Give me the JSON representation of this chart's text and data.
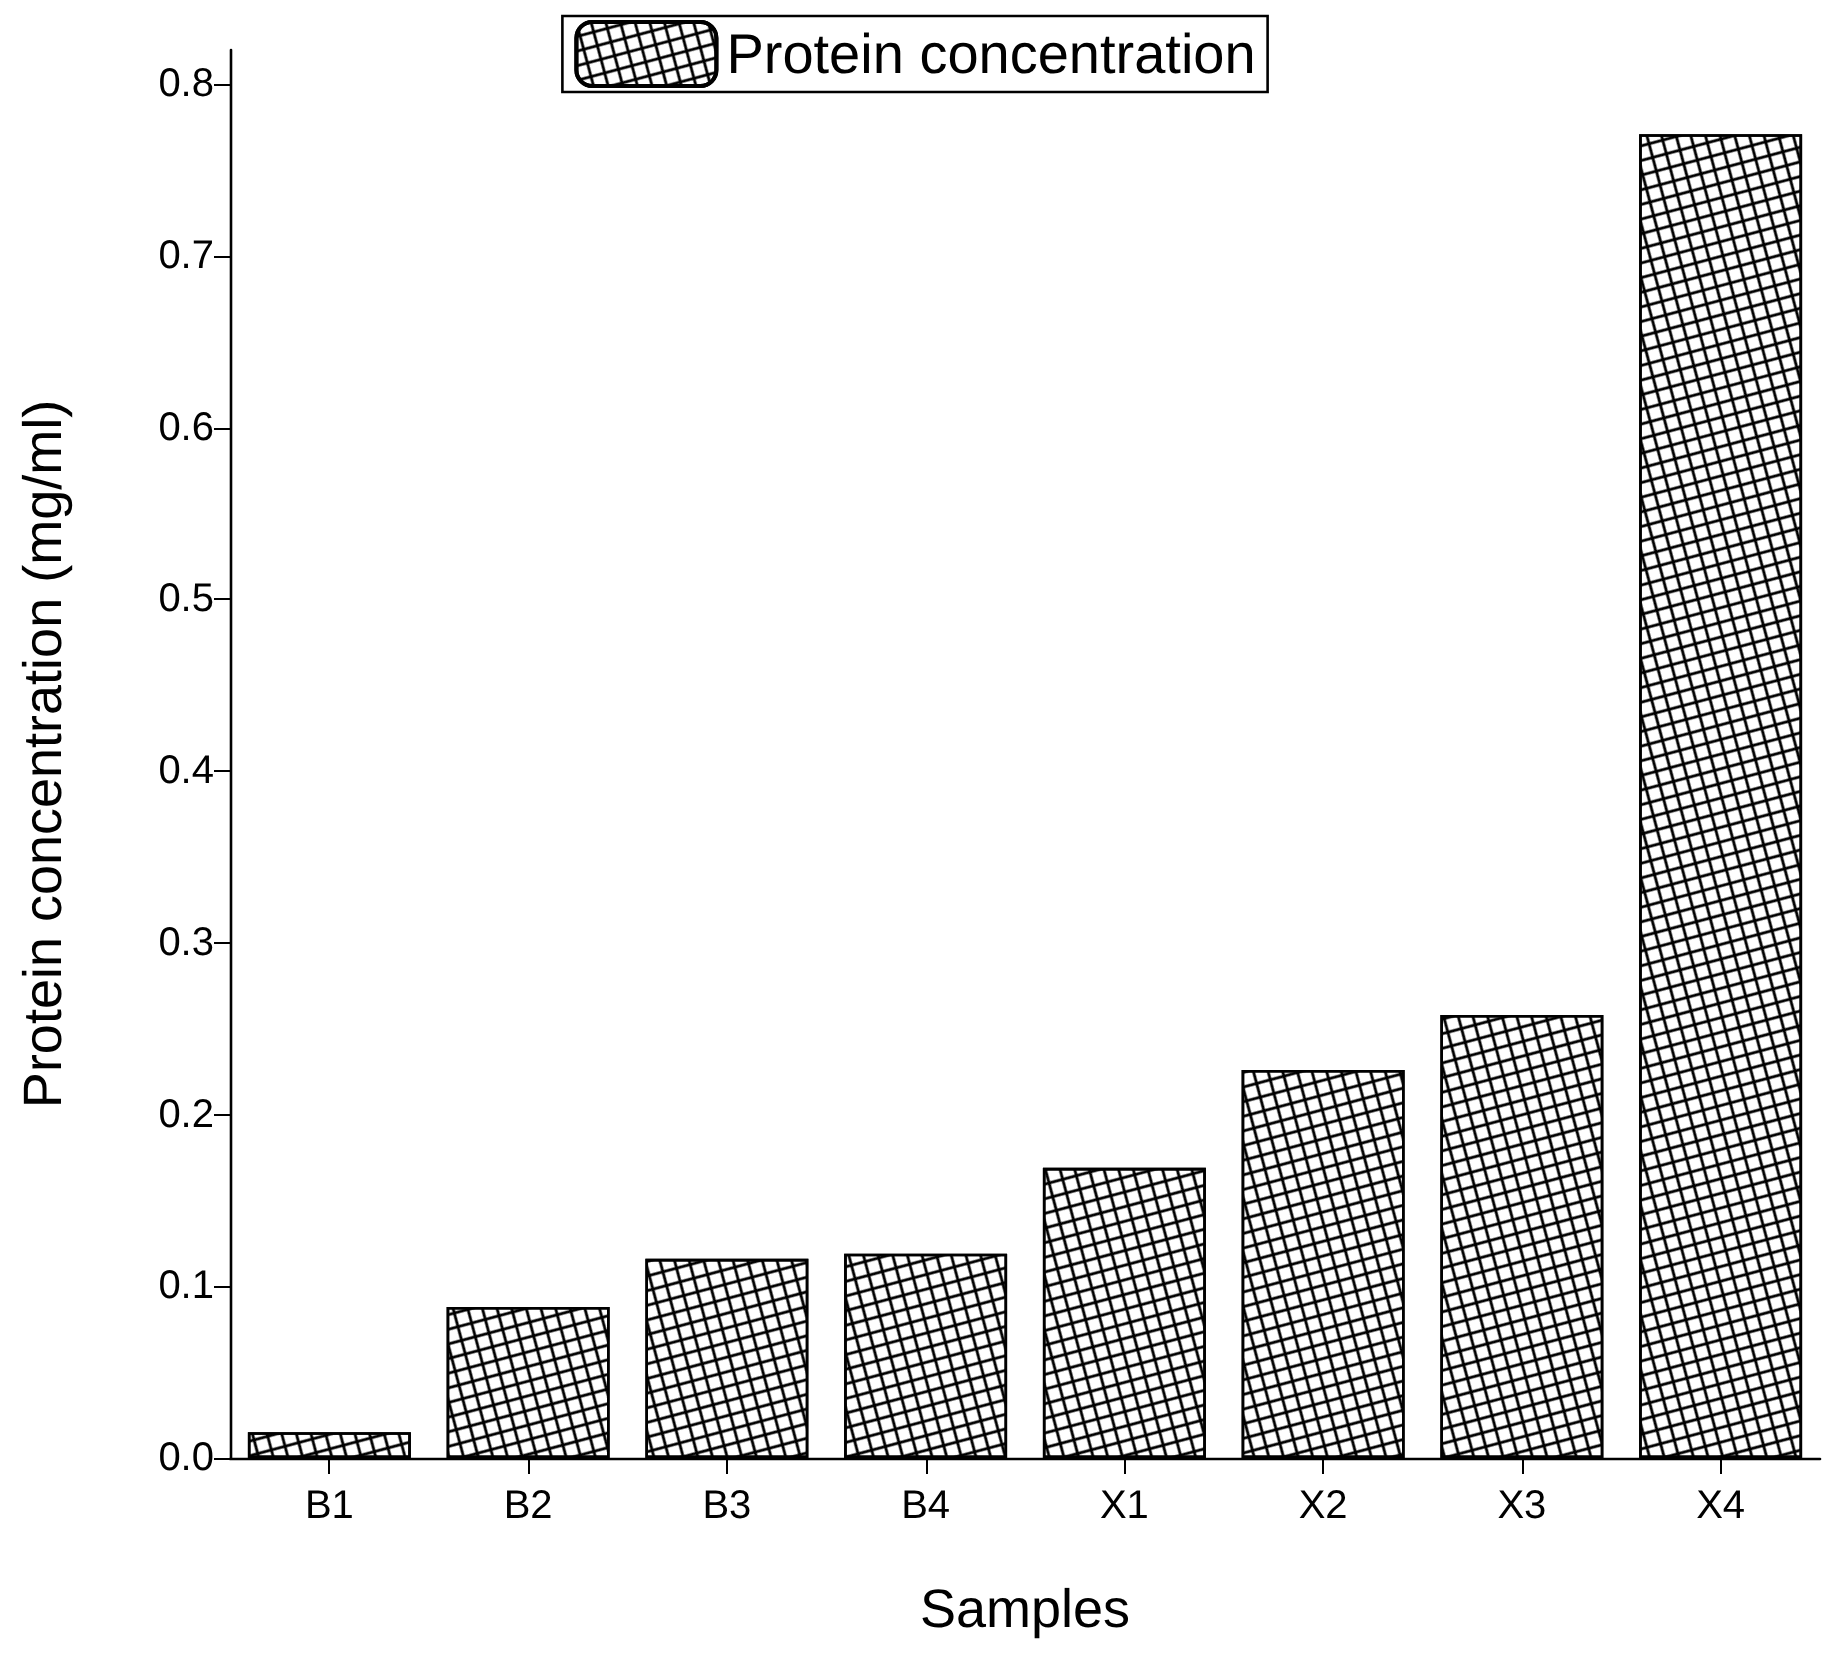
{
  "chart_data": {
    "type": "bar",
    "xlabel": "Samples",
    "ylabel": "Protein concentration (mg/ml)",
    "categories": [
      "B1",
      "B2",
      "B3",
      "B4",
      "X1",
      "X2",
      "X3",
      "X4"
    ],
    "series": [
      {
        "name": "Protein concentration",
        "color": "#000000",
        "values": [
          0.015,
          0.088,
          0.116,
          0.119,
          0.169,
          0.226,
          0.258,
          0.771
        ]
      }
    ],
    "ylim": [
      0,
      0.82
    ],
    "yticks": [
      {
        "value": 0,
        "label": "0.0"
      },
      0.1,
      0.2,
      0.3,
      0.4,
      0.5,
      0.6,
      0.7,
      0.8
    ],
    "legend": "top",
    "grid": false
  }
}
